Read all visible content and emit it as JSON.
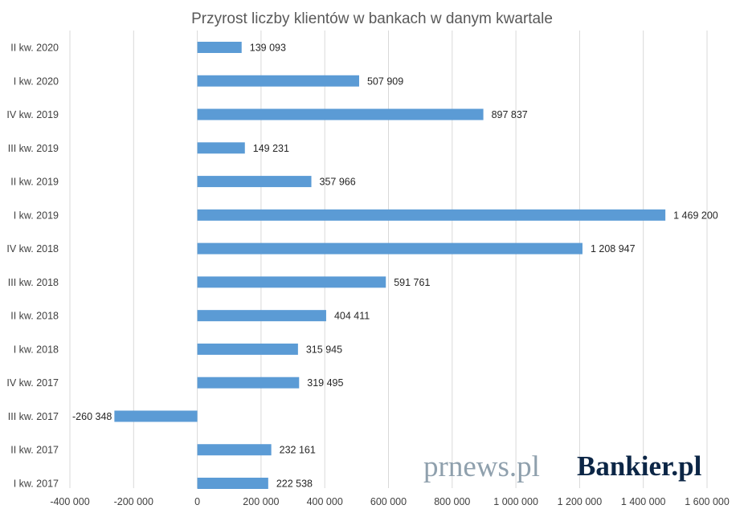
{
  "chart_data": {
    "type": "bar",
    "orientation": "horizontal",
    "title": "Przyrost liczby klientów w bankach w danym kwartale",
    "xlabel": "",
    "ylabel": "",
    "xlim": [
      -400000,
      1600000
    ],
    "x_ticks": [
      -400000,
      -200000,
      0,
      200000,
      400000,
      600000,
      800000,
      1000000,
      1200000,
      1400000,
      1600000
    ],
    "x_tick_labels": [
      "-400 000",
      "-200 000",
      "0",
      "200 000",
      "400 000",
      "600 000",
      "800 000",
      "1 000 000",
      "1 200 000",
      "1 400 000",
      "1 600 000"
    ],
    "grid": "vertical",
    "legend": "none",
    "bar_color": "#5b9bd5",
    "categories": [
      "II kw. 2020",
      "I kw. 2020",
      "IV kw. 2019",
      "III kw. 2019",
      "II kw. 2019",
      "I kw. 2019",
      "IV kw. 2018",
      "III kw. 2018",
      "II kw. 2018",
      "I kw. 2018",
      "IV kw. 2017",
      "III kw. 2017",
      "II kw. 2017",
      "I kw. 2017"
    ],
    "values": [
      139093,
      507909,
      897837,
      149231,
      357966,
      1469200,
      1208947,
      591761,
      404411,
      315945,
      319495,
      -260348,
      232161,
      222538
    ],
    "value_labels": [
      "139 093",
      "507 909",
      "897 837",
      "149 231",
      "357 966",
      "1 469 200",
      "1 208 947",
      "591 761",
      "404 411",
      "315 945",
      "319 495",
      "-260 348",
      "232 161",
      "222 538"
    ]
  },
  "logos": {
    "prnews": "prnews.pl",
    "bankier": "Bankier.pl"
  }
}
